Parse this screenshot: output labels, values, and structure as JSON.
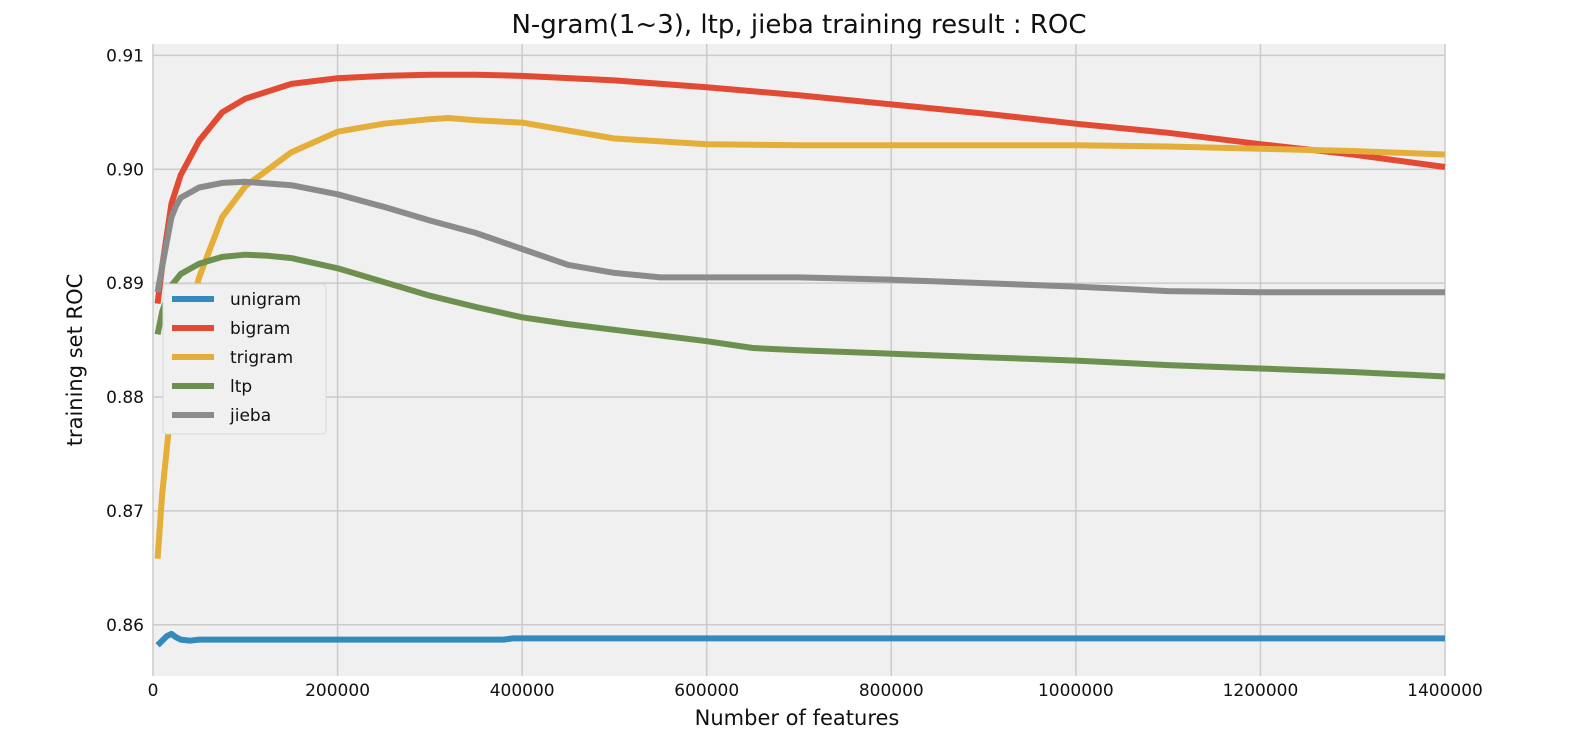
{
  "chart_data": {
    "type": "line",
    "title": "N-gram(1~3), ltp, jieba training result : ROC",
    "xlabel": "Number of features",
    "ylabel": "training set ROC",
    "xlim": [
      0,
      1400000
    ],
    "ylim": [
      0.8555,
      0.911
    ],
    "xticks": [
      0,
      200000,
      400000,
      600000,
      800000,
      1000000,
      1200000,
      1400000
    ],
    "xtick_labels": [
      "0",
      "200000",
      "400000",
      "600000",
      "800000",
      "1000000",
      "1200000",
      "1400000"
    ],
    "yticks": [
      0.86,
      0.87,
      0.88,
      0.89,
      0.9,
      0.91
    ],
    "ytick_labels": [
      "0.86",
      "0.87",
      "0.88",
      "0.89",
      "0.90",
      "0.91"
    ],
    "grid": true,
    "legend_position": "center-left",
    "background_color": "#f0f0f0",
    "grid_color": "#cbcbcb",
    "series": [
      {
        "name": "unigram",
        "color": "#348ABD",
        "x": [
          5000,
          10000,
          15000,
          20000,
          25000,
          30000,
          40000,
          50000,
          100000,
          200000,
          300000,
          380000,
          390000,
          400000,
          600000,
          800000,
          1000000,
          1200000,
          1400000
        ],
        "y": [
          0.8582,
          0.8586,
          0.859,
          0.8592,
          0.8589,
          0.8587,
          0.8586,
          0.8587,
          0.8587,
          0.8587,
          0.8587,
          0.8587,
          0.8588,
          0.8588,
          0.8588,
          0.8588,
          0.8588,
          0.8588,
          0.8588
        ]
      },
      {
        "name": "bigram",
        "color": "#E24A33",
        "x": [
          5000,
          10000,
          20000,
          30000,
          50000,
          75000,
          100000,
          150000,
          200000,
          250000,
          300000,
          350000,
          400000,
          500000,
          600000,
          700000,
          800000,
          900000,
          1000000,
          1100000,
          1200000,
          1300000,
          1400000
        ],
        "y": [
          0.8882,
          0.8915,
          0.897,
          0.8995,
          0.9025,
          0.905,
          0.9062,
          0.9075,
          0.908,
          0.9082,
          0.9083,
          0.9083,
          0.9082,
          0.9078,
          0.9072,
          0.9065,
          0.9057,
          0.9049,
          0.904,
          0.9032,
          0.9022,
          0.9013,
          0.9002
        ]
      },
      {
        "name": "trigram",
        "color": "#E5AE38",
        "x": [
          5000,
          10000,
          20000,
          30000,
          50000,
          75000,
          100000,
          150000,
          200000,
          250000,
          300000,
          320000,
          350000,
          400000,
          500000,
          600000,
          700000,
          800000,
          900000,
          1000000,
          1100000,
          1200000,
          1300000,
          1400000
        ],
        "y": [
          0.8658,
          0.8715,
          0.8795,
          0.8845,
          0.8905,
          0.8958,
          0.8985,
          0.9015,
          0.9033,
          0.904,
          0.9044,
          0.9045,
          0.9043,
          0.9041,
          0.9027,
          0.9022,
          0.9021,
          0.9021,
          0.9021,
          0.9021,
          0.902,
          0.9018,
          0.9016,
          0.9013
        ]
      },
      {
        "name": "ltp",
        "color": "#6D904F",
        "x": [
          5000,
          10000,
          20000,
          30000,
          50000,
          75000,
          100000,
          125000,
          150000,
          200000,
          250000,
          300000,
          350000,
          400000,
          450000,
          500000,
          550000,
          600000,
          650000,
          700000,
          800000,
          900000,
          1000000,
          1100000,
          1200000,
          1300000,
          1400000
        ],
        "y": [
          0.8855,
          0.8875,
          0.8898,
          0.8908,
          0.8917,
          0.8923,
          0.8925,
          0.8924,
          0.8922,
          0.8913,
          0.8901,
          0.8889,
          0.8879,
          0.887,
          0.8864,
          0.8859,
          0.8854,
          0.8849,
          0.8843,
          0.8841,
          0.8838,
          0.8835,
          0.8832,
          0.8828,
          0.8825,
          0.8822,
          0.8818
        ]
      },
      {
        "name": "jieba",
        "color": "#8B8B8B",
        "x": [
          5000,
          10000,
          20000,
          25000,
          30000,
          50000,
          75000,
          100000,
          150000,
          200000,
          250000,
          300000,
          350000,
          400000,
          450000,
          500000,
          550000,
          600000,
          700000,
          800000,
          900000,
          1000000,
          1100000,
          1200000,
          1300000,
          1400000
        ],
        "y": [
          0.8892,
          0.8915,
          0.8958,
          0.8968,
          0.8975,
          0.8984,
          0.8988,
          0.8989,
          0.8986,
          0.8978,
          0.8967,
          0.8955,
          0.8944,
          0.893,
          0.8916,
          0.8909,
          0.8905,
          0.8905,
          0.8905,
          0.8903,
          0.89,
          0.8897,
          0.8893,
          0.8892,
          0.8892,
          0.8892
        ]
      }
    ]
  }
}
